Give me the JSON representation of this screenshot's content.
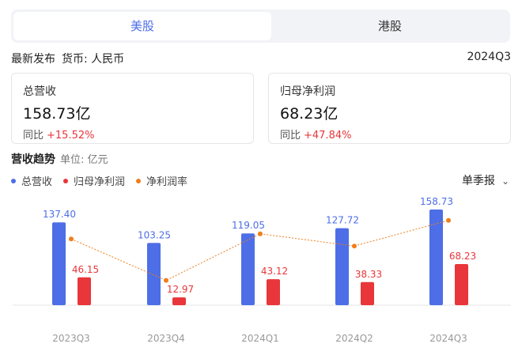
{
  "tabs": [
    {
      "label": "美股",
      "active": true
    },
    {
      "label": "港股",
      "active": false
    }
  ],
  "info": {
    "latest_release": "最新发布",
    "currency": "货币: 人民币",
    "period": "2024Q3"
  },
  "cards": {
    "revenue": {
      "label": "总营收",
      "value": "158.73亿",
      "yoy_label": "同比",
      "yoy_change": "+15.52%"
    },
    "net_profit": {
      "label": "归母净利润",
      "value": "68.23亿",
      "yoy_label": "同比",
      "yoy_change": "+47.84%"
    }
  },
  "trend": {
    "title": "营收趋势",
    "unit": "单位: 亿元",
    "frequency": "单季报"
  },
  "legend": [
    {
      "label": "总营收",
      "color": "#4d6ee6"
    },
    {
      "label": "归母净利润",
      "color": "#e8363a"
    },
    {
      "label": "净利润率",
      "color": "#f07e1b"
    }
  ],
  "colors": {
    "revenue": "#4d6ee6",
    "profit": "#e8363a",
    "margin": "#f07e1b",
    "positive": "#e8363a"
  },
  "chart_data": {
    "type": "bar",
    "categories": [
      "2023Q3",
      "2023Q4",
      "2024Q1",
      "2024Q2",
      "2024Q3"
    ],
    "series": [
      {
        "name": "总营收",
        "values": [
          137.4,
          103.25,
          119.05,
          127.72,
          158.73
        ],
        "labels": [
          "137.40",
          "103.25",
          "119.05",
          "127.72",
          "158.73"
        ]
      },
      {
        "name": "归母净利润",
        "values": [
          46.15,
          12.97,
          43.12,
          38.33,
          68.23
        ],
        "labels": [
          "46.15",
          "12.97",
          "43.12",
          "38.33",
          "68.23"
        ]
      },
      {
        "name": "净利润率",
        "type": "line",
        "values": [
          33.6,
          12.6,
          36.2,
          30.0,
          43.0
        ]
      }
    ],
    "ylim": [
      0,
      160
    ],
    "grid": false,
    "legend_position": "top-left"
  }
}
